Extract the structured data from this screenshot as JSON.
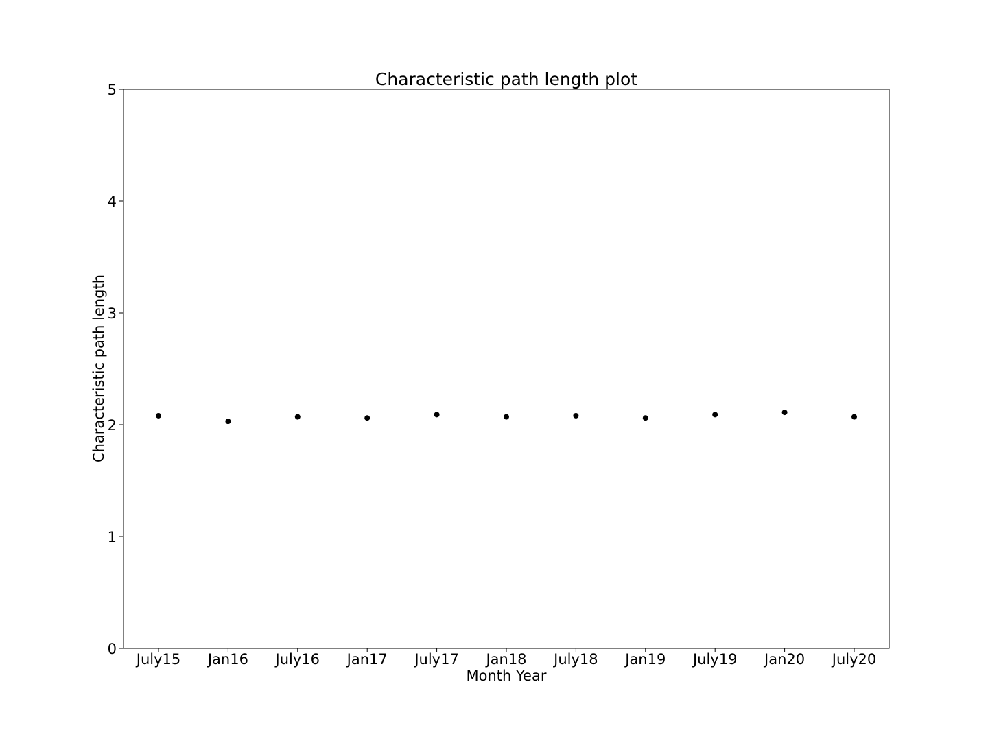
{
  "chart_data": {
    "type": "scatter",
    "title": "Characteristic path length plot",
    "xlabel": "Month Year",
    "ylabel": "Characteristic path length",
    "categories": [
      "July15",
      "Jan16",
      "July16",
      "Jan17",
      "July17",
      "Jan18",
      "July18",
      "Jan19",
      "July19",
      "Jan20",
      "July20"
    ],
    "values": [
      2.08,
      2.03,
      2.07,
      2.06,
      2.09,
      2.07,
      2.08,
      2.06,
      2.09,
      2.11,
      2.07
    ],
    "ylim": [
      0,
      5
    ],
    "yticks": [
      0,
      1,
      2,
      3,
      4,
      5
    ],
    "grid": false,
    "marker_color": "#000000"
  }
}
